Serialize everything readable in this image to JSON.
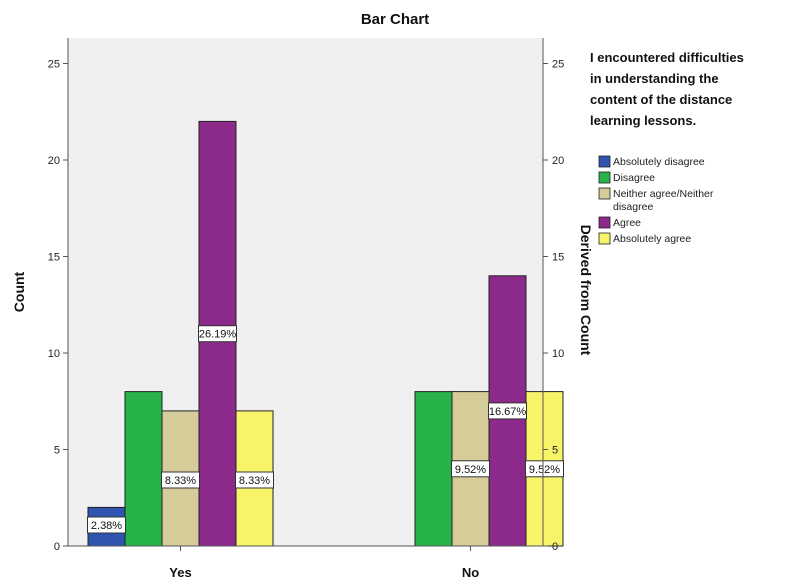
{
  "chart_data": {
    "type": "bar",
    "title": "Bar Chart",
    "xlabel": "",
    "ylabel": "Count",
    "y2label": "Derived from Count",
    "ylim": [
      0,
      26
    ],
    "yticks": [
      "0",
      "5",
      "10",
      "15",
      "20",
      "25"
    ],
    "y2ticks": [
      "0",
      "5",
      "10",
      "15",
      "20",
      "25"
    ],
    "categories": [
      "Yes",
      "No"
    ],
    "legend": {
      "title_lines": [
        "I encountered difficulties",
        "in understanding the",
        "content of the distance",
        "learning lessons."
      ],
      "placement": "right"
    },
    "series": [
      {
        "name": "Absolutely disagree",
        "legend_lines": [
          "Absolutely disagree"
        ],
        "color": "#2f55b0",
        "values": [
          2,
          0
        ],
        "labels": [
          "2.38%",
          ""
        ]
      },
      {
        "name": "Disagree",
        "legend_lines": [
          "Disagree"
        ],
        "color": "#27b34a",
        "values": [
          8,
          8
        ],
        "labels": [
          "",
          ""
        ]
      },
      {
        "name": "Neither agree/Neither disagree",
        "legend_lines": [
          "Neither agree/Neither",
          "disagree"
        ],
        "color": "#d6cc99",
        "values": [
          7,
          8
        ],
        "labels": [
          "8.33%",
          "9.52%"
        ]
      },
      {
        "name": "Agree",
        "legend_lines": [
          "Agree"
        ],
        "color": "#8b2a8a",
        "values": [
          22,
          14
        ],
        "labels": [
          "26.19%",
          "16.67%"
        ]
      },
      {
        "name": "Absolutely agree",
        "legend_lines": [
          "Absolutely agree"
        ],
        "color": "#f7f46a",
        "values": [
          7,
          8
        ],
        "labels": [
          "8.33%",
          "9.52%"
        ]
      }
    ],
    "grid": false
  }
}
